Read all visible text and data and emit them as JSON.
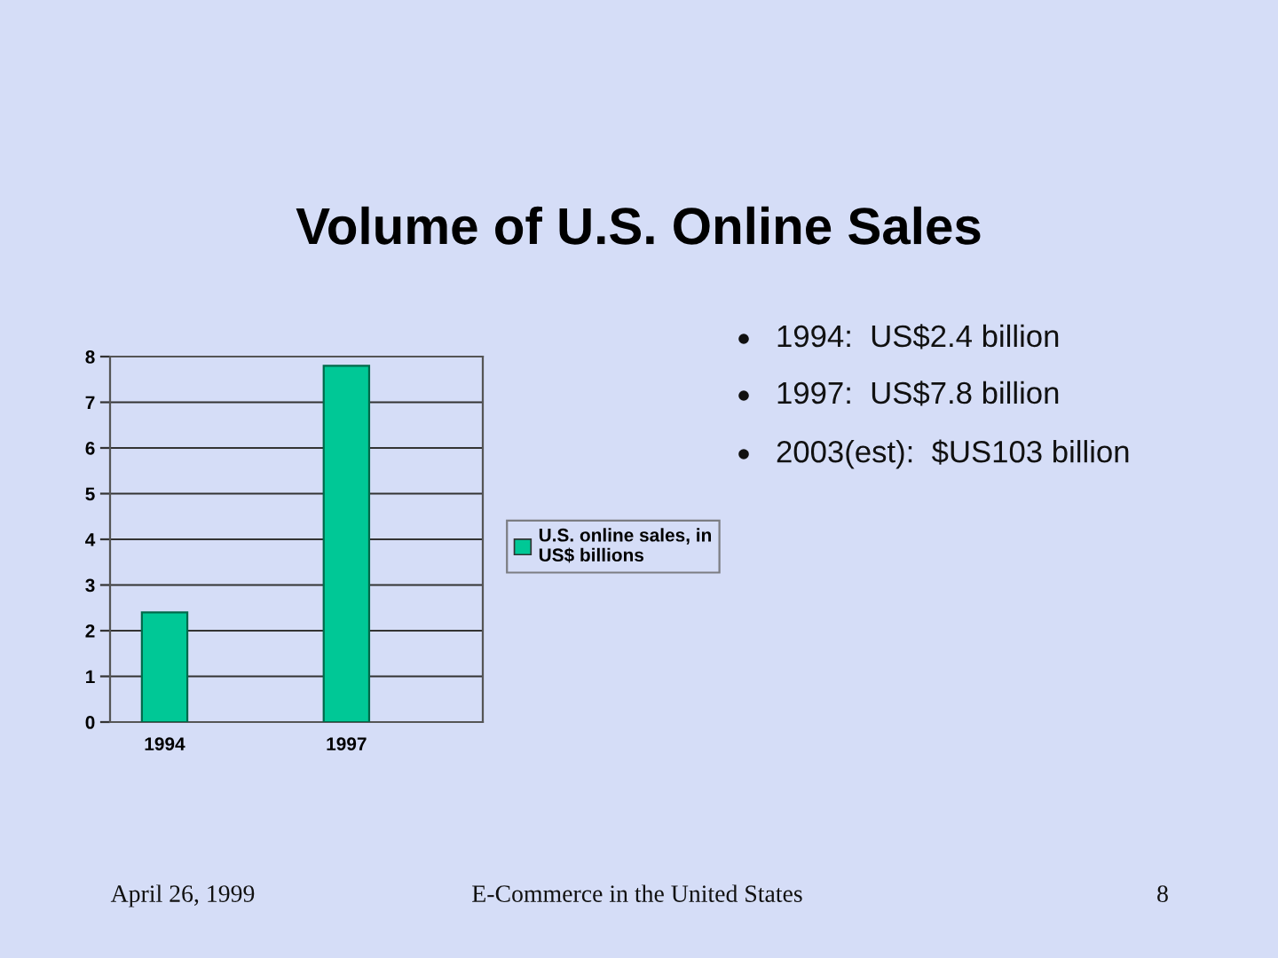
{
  "chart_data": {
    "type": "bar",
    "title": "Volume of U.S. Online Sales",
    "categories": [
      "1994",
      "1997"
    ],
    "series": [
      {
        "name": "U.S. online sales, in\nUS$ billions",
        "color": "#00c896",
        "values": [
          2.4,
          7.8
        ]
      }
    ],
    "ylim": [
      0,
      8
    ],
    "yticks": [
      0,
      1,
      2,
      3,
      4,
      5,
      6,
      7,
      8
    ],
    "grid": "y",
    "legend": "right",
    "annotations": [
      "1994:  US$2.4 billion",
      "1997:  US$7.8 billion",
      "2003(est):  $US103 billion",
      "April 26, 1999",
      "E-Commerce in the United States",
      "8"
    ]
  }
}
